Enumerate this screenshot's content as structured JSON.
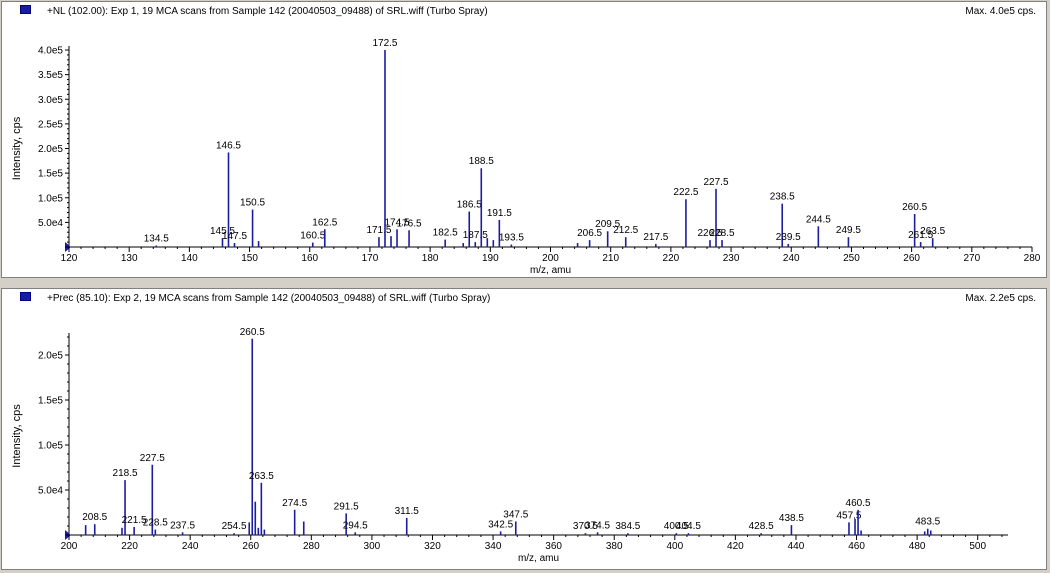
{
  "panes": [
    {
      "title": "+NL (102.00): Exp 1, 19 MCA scans from Sample 142 (20040503_09488) of SRL.wiff (Turbo Spray)",
      "max_label": "Max. 4.0e5 cps."
    },
    {
      "title": "+Prec (85.10): Exp 2, 19 MCA scans from Sample 142 (20040503_09488) of SRL.wiff (Turbo Spray)",
      "max_label": "Max. 2.2e5 cps."
    }
  ],
  "colors": {
    "peak": "#1c1ca0",
    "axis": "#000000",
    "marker": "#1a1aa8"
  },
  "chart_data": [
    {
      "type": "bar",
      "xlabel": "m/z, amu",
      "ylabel": "Intensity, cps",
      "xlim": [
        120,
        280
      ],
      "ylim": [
        0,
        400000
      ],
      "x_ticks": [
        120,
        130,
        140,
        150,
        160,
        170,
        180,
        190,
        200,
        210,
        220,
        230,
        240,
        250,
        260,
        270,
        280
      ],
      "x_tick_labels": [
        "120",
        "130",
        "140",
        "150",
        "160",
        "170",
        "180",
        "190",
        "200",
        "210",
        "220",
        "230",
        "240",
        "250",
        "260",
        "270",
        "280"
      ],
      "y_ticks": [
        50000,
        100000,
        150000,
        200000,
        250000,
        300000,
        350000,
        400000
      ],
      "y_tick_labels": [
        "5.0e4",
        "1.0e5",
        "1.5e5",
        "2.0e5",
        "2.5e5",
        "3.0e5",
        "3.5e5",
        "4.0e5"
      ],
      "peaks": [
        {
          "x": 134.5,
          "y": 3000,
          "label": "134.5"
        },
        {
          "x": 145.5,
          "y": 18000,
          "label": "145.5"
        },
        {
          "x": 146.5,
          "y": 192000,
          "label": "146.5"
        },
        {
          "x": 147.5,
          "y": 8000,
          "label": "147.5"
        },
        {
          "x": 150.5,
          "y": 76000,
          "label": "150.5"
        },
        {
          "x": 151.5,
          "y": 12000
        },
        {
          "x": 160.5,
          "y": 9000,
          "label": "160.5"
        },
        {
          "x": 162.5,
          "y": 36000,
          "label": "162.5"
        },
        {
          "x": 171.5,
          "y": 20000,
          "label": "171.5"
        },
        {
          "x": 172.5,
          "y": 400000,
          "label": "172.5"
        },
        {
          "x": 173.5,
          "y": 22000
        },
        {
          "x": 174.5,
          "y": 36000,
          "label": "174.5"
        },
        {
          "x": 176.5,
          "y": 34000,
          "label": "176.5"
        },
        {
          "x": 182.5,
          "y": 15000,
          "label": "182.5"
        },
        {
          "x": 185.5,
          "y": 8000
        },
        {
          "x": 186.5,
          "y": 72000,
          "label": "186.5"
        },
        {
          "x": 187.5,
          "y": 10000,
          "label": "187.5"
        },
        {
          "x": 188.5,
          "y": 160000,
          "label": "188.5"
        },
        {
          "x": 189.5,
          "y": 18000
        },
        {
          "x": 190.5,
          "y": 14000
        },
        {
          "x": 191.5,
          "y": 55000,
          "label": "191.5"
        },
        {
          "x": 193.5,
          "y": 5000,
          "label": "193.5"
        },
        {
          "x": 204.5,
          "y": 8000
        },
        {
          "x": 206.5,
          "y": 14000,
          "label": "206.5"
        },
        {
          "x": 209.5,
          "y": 32000,
          "label": "209.5"
        },
        {
          "x": 212.5,
          "y": 20000,
          "label": "212.5"
        },
        {
          "x": 217.5,
          "y": 6000,
          "label": "217.5"
        },
        {
          "x": 222.5,
          "y": 97000,
          "label": "222.5"
        },
        {
          "x": 226.5,
          "y": 14000,
          "label": "226.5"
        },
        {
          "x": 227.5,
          "y": 118000,
          "label": "227.5"
        },
        {
          "x": 228.5,
          "y": 14000,
          "label": "228.5"
        },
        {
          "x": 238.5,
          "y": 88000,
          "label": "238.5"
        },
        {
          "x": 239.5,
          "y": 6000,
          "label": "239.5"
        },
        {
          "x": 244.5,
          "y": 42000,
          "label": "244.5"
        },
        {
          "x": 249.5,
          "y": 20000,
          "label": "249.5"
        },
        {
          "x": 260.5,
          "y": 67000,
          "label": "260.5"
        },
        {
          "x": 261.5,
          "y": 10000,
          "label": "261.5"
        },
        {
          "x": 263.5,
          "y": 18000,
          "label": "263.5"
        }
      ]
    },
    {
      "type": "bar",
      "xlabel": "m/z, amu",
      "ylabel": "Intensity, cps",
      "xlim": [
        200,
        510
      ],
      "ylim": [
        0,
        220000
      ],
      "x_ticks": [
        200,
        220,
        240,
        260,
        280,
        300,
        320,
        340,
        360,
        380,
        400,
        420,
        440,
        460,
        480,
        500
      ],
      "x_tick_labels": [
        "200",
        "220",
        "240",
        "260",
        "280",
        "300",
        "320",
        "340",
        "360",
        "380",
        "400",
        "420",
        "440",
        "460",
        "480",
        "500"
      ],
      "y_ticks": [
        50000,
        100000,
        150000,
        200000
      ],
      "y_tick_labels": [
        "5.0e4",
        "1.0e5",
        "1.5e5",
        "2.0e5"
      ],
      "peaks": [
        {
          "x": 205.5,
          "y": 11000
        },
        {
          "x": 208.5,
          "y": 12000,
          "label": "208.5"
        },
        {
          "x": 217.5,
          "y": 8000
        },
        {
          "x": 218.5,
          "y": 61000,
          "label": "218.5"
        },
        {
          "x": 221.5,
          "y": 9000,
          "label": "221.5"
        },
        {
          "x": 227.5,
          "y": 78000,
          "label": "227.5"
        },
        {
          "x": 228.5,
          "y": 6000,
          "label": "228.5"
        },
        {
          "x": 237.5,
          "y": 3000,
          "label": "237.5"
        },
        {
          "x": 254.5,
          "y": 2000,
          "label": "254.5"
        },
        {
          "x": 259.5,
          "y": 14000
        },
        {
          "x": 260.5,
          "y": 218000,
          "label": "260.5"
        },
        {
          "x": 261.5,
          "y": 37000
        },
        {
          "x": 262.5,
          "y": 8000
        },
        {
          "x": 263.5,
          "y": 58000,
          "label": "263.5"
        },
        {
          "x": 264.5,
          "y": 6000
        },
        {
          "x": 274.5,
          "y": 28000,
          "label": "274.5"
        },
        {
          "x": 277.5,
          "y": 15000
        },
        {
          "x": 291.5,
          "y": 24000,
          "label": "291.5"
        },
        {
          "x": 294.5,
          "y": 3000,
          "label": "294.5"
        },
        {
          "x": 311.5,
          "y": 19000,
          "label": "311.5"
        },
        {
          "x": 342.5,
          "y": 4000,
          "label": "342.5"
        },
        {
          "x": 347.5,
          "y": 15000,
          "label": "347.5"
        },
        {
          "x": 370.5,
          "y": 2000,
          "label": "370.5"
        },
        {
          "x": 374.5,
          "y": 3000,
          "label": "374.5"
        },
        {
          "x": 384.5,
          "y": 2000,
          "label": "384.5"
        },
        {
          "x": 400.5,
          "y": 2000,
          "label": "400.5"
        },
        {
          "x": 404.5,
          "y": 2000,
          "label": "404.5"
        },
        {
          "x": 428.5,
          "y": 2000,
          "label": "428.5"
        },
        {
          "x": 438.5,
          "y": 11000,
          "label": "438.5"
        },
        {
          "x": 457.5,
          "y": 14000,
          "label": "457.5"
        },
        {
          "x": 459.5,
          "y": 18000
        },
        {
          "x": 460.5,
          "y": 28000,
          "label": "460.5"
        },
        {
          "x": 461.5,
          "y": 5000
        },
        {
          "x": 482.5,
          "y": 4000
        },
        {
          "x": 483.5,
          "y": 7000,
          "label": "483.5"
        },
        {
          "x": 484.5,
          "y": 5000
        }
      ]
    }
  ]
}
